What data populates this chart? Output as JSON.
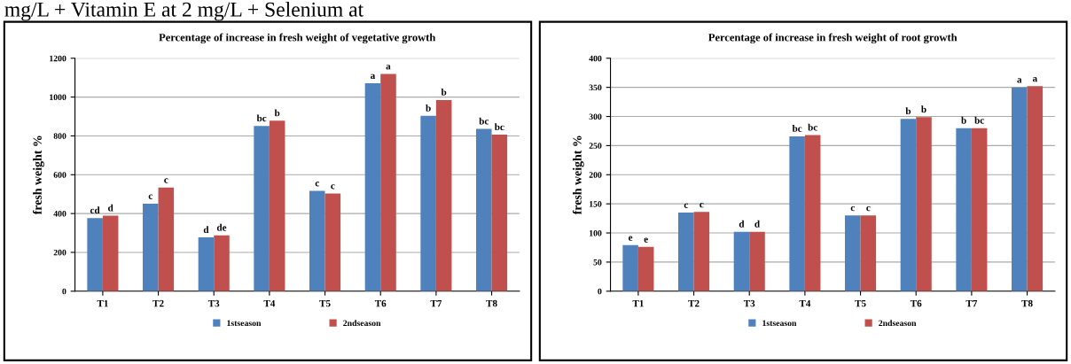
{
  "chart_data": [
    {
      "type": "bar",
      "title": "Percentage of increase in fresh weight of vegetative growth",
      "ylabel": "fresh weight %",
      "annotations": [
        "mg/L + Vitamin E at 2 mg/L + Selenium at"
      ],
      "categories": [
        "T1",
        "T2",
        "T3",
        "T4",
        "T5",
        "T6",
        "T7",
        "T8"
      ],
      "series": [
        {
          "name": "1stseason",
          "color": "#4f81bd",
          "values": [
            377,
            451,
            277,
            851,
            517,
            1071,
            903,
            836
          ],
          "value_labels": [
            "cd",
            "c",
            "d",
            "bc",
            "c",
            "a",
            "b",
            "bc"
          ]
        },
        {
          "name": "2ndseason",
          "color": "#c0504d",
          "values": [
            389,
            534,
            288,
            878,
            503,
            1119,
            985,
            806
          ],
          "value_labels": [
            "d",
            "c",
            "de",
            "b",
            "c",
            "a",
            "b",
            "bc"
          ]
        }
      ],
      "ylim": [
        0,
        1200
      ],
      "yticks": [
        0,
        200,
        400,
        600,
        800,
        1000,
        1200
      ],
      "grid": "y",
      "legend": "bottom"
    },
    {
      "type": "bar",
      "title": "Percentage of increase in fresh weight of root growth",
      "ylabel": "fresh weight %",
      "categories": [
        "T1",
        "T2",
        "T3",
        "T4",
        "T5",
        "T6",
        "T7",
        "T8"
      ],
      "series": [
        {
          "name": "1stseason",
          "color": "#4f81bd",
          "values": [
            79,
            135,
            102,
            266,
            130,
            296,
            280,
            350
          ],
          "value_labels": [
            "e",
            "c",
            "d",
            "bc",
            "c",
            "b",
            "b",
            "a"
          ]
        },
        {
          "name": "2ndseason",
          "color": "#c0504d",
          "values": [
            76,
            136,
            102,
            268,
            130,
            299,
            280,
            352
          ],
          "value_labels": [
            "e",
            "c",
            "d",
            "bc",
            "c",
            "b",
            "bc",
            "a"
          ]
        }
      ],
      "ylim": [
        0,
        400
      ],
      "yticks": [
        0,
        50,
        100,
        150,
        200,
        250,
        300,
        350,
        400
      ],
      "grid": "y",
      "legend": "bottom"
    }
  ]
}
